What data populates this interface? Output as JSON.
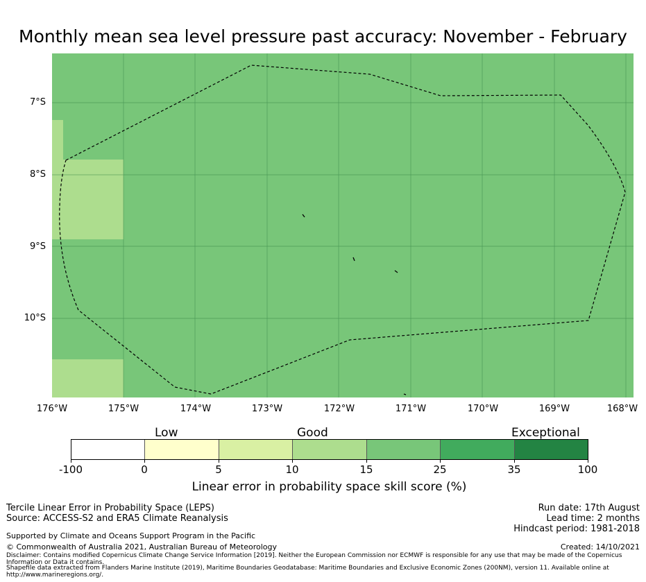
{
  "title": "Monthly mean sea level pressure past accuracy: November - February",
  "lat_labels": [
    "7°S",
    "8°S",
    "9°S",
    "10°S"
  ],
  "lon_labels": [
    "176°W",
    "175°W",
    "174°W",
    "173°W",
    "172°W",
    "171°W",
    "170°W",
    "169°W",
    "168°W"
  ],
  "map": {
    "background_color": "#78c679",
    "light_patch_color": "#addd8e",
    "grid": true,
    "boundary_style": "dashed",
    "region_categories": [
      "15-25 (most of area)",
      "10-15 (western edge patches)"
    ]
  },
  "colorbar": {
    "category_labels": [
      "Low",
      "Good",
      "Exceptional"
    ],
    "ticks": [
      "-100",
      "0",
      "5",
      "10",
      "15",
      "25",
      "35",
      "100"
    ],
    "colors": [
      "#ffffff",
      "#ffffcc",
      "#d9f0a3",
      "#addd8e",
      "#78c679",
      "#41ab5d",
      "#238443"
    ],
    "label": "Linear error in probability space skill score (%)"
  },
  "footer": {
    "method": "Tercile Linear Error in Probability Space (LEPS)",
    "source": "Source: ACCESS-S2 and ERA5 Climate Reanalysis",
    "run_date": "Run date: 17th August",
    "lead_time": "Lead time: 2 months",
    "hindcast": "Hindcast period: 1981-2018",
    "support": "Supported by Climate and Oceans Support Program in the Pacific",
    "copyright": "© Commonwealth of Australia 2021, Australian Bureau of Meteorology",
    "created": "Created: 14/10/2021",
    "disclaimer": "Disclaimer: Contains modified Copernicus Climate Change Service Information [2019]. Neither the European Commission nor ECMWF is responsible for any use that may be made of the Copernicus Information or Data it contains.",
    "shapefile": "Shapefile data extracted from Flanders Marine Institute (2019), Maritime Boundaries Geodatabase: Maritime Boundaries and Exclusive Economic Zones (200NM), version 11. Available online at http://www.marineregions.org/."
  }
}
